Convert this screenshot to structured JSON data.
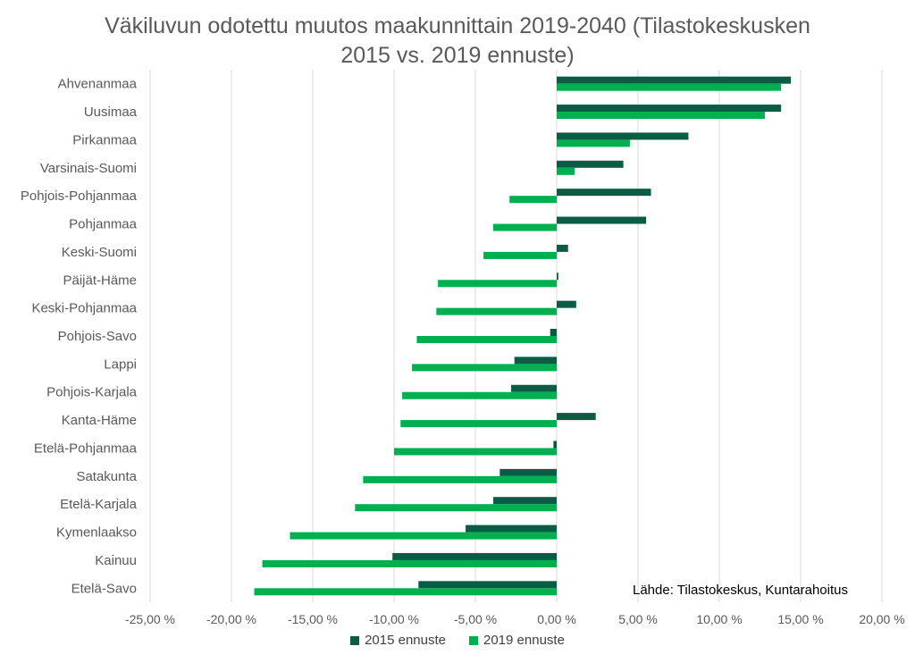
{
  "chart_data": {
    "type": "bar",
    "orientation": "horizontal",
    "title_line1": "Väkiluvun odotettu muutos maakunnittain 2019-2040 (Tilastokeskusken",
    "title_line2": "2015 vs. 2019 ennuste)",
    "categories": [
      "Ahvenanmaa",
      "Uusimaa",
      "Pirkanmaa",
      "Varsinais-Suomi",
      "Pohjois-Pohjanmaa",
      "Pohjanmaa",
      "Keski-Suomi",
      "Päijät-Häme",
      "Keski-Pohjanmaa",
      "Pohjois-Savo",
      "Lappi",
      "Pohjois-Karjala",
      "Kanta-Häme",
      "Etelä-Pohjanmaa",
      "Satakunta",
      "Etelä-Karjala",
      "Kymenlaakso",
      "Kainuu",
      "Etelä-Savo"
    ],
    "series": [
      {
        "name": "2015 ennuste",
        "color": "#0b5c45",
        "values": [
          14.4,
          13.8,
          8.1,
          4.1,
          5.8,
          5.5,
          0.7,
          0.1,
          1.2,
          -0.4,
          -2.6,
          -2.8,
          2.4,
          -0.2,
          -3.5,
          -3.9,
          -5.6,
          -10.1,
          -8.5
        ]
      },
      {
        "name": "2019 ennuste",
        "color": "#00b04f",
        "values": [
          13.8,
          12.8,
          4.5,
          1.1,
          -2.9,
          -3.9,
          -4.5,
          -7.3,
          -7.4,
          -8.6,
          -8.9,
          -9.5,
          -9.6,
          -10.0,
          -11.9,
          -12.4,
          -16.4,
          -18.1,
          -18.6
        ]
      }
    ],
    "xlim": [
      -25,
      20
    ],
    "xticks": [
      "-25,00 %",
      "-20,00 %",
      "-15,00 %",
      "-10,00 %",
      "-5,00 %",
      "0,00 %",
      "5,00 %",
      "10,00 %",
      "15,00 %",
      "20,00 %"
    ],
    "grid": true,
    "legend_position": "bottom"
  },
  "source_note": "Lähde: Tilastokeskus, Kuntarahoitus"
}
